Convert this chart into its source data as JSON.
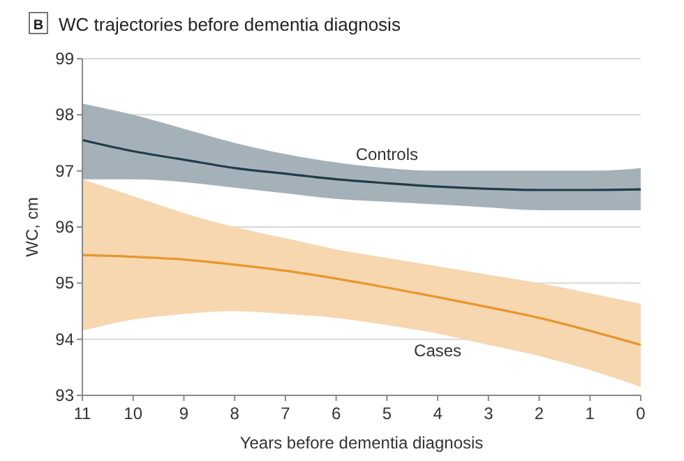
{
  "chart_data": {
    "type": "line",
    "title": "WC trajectories before dementia diagnosis",
    "annotations": [
      "B"
    ],
    "xlabel": "Years before dementia diagnosis",
    "ylabel": "WC, cm",
    "x": [
      11,
      10,
      9,
      8,
      7,
      6,
      5,
      4,
      3,
      2,
      1,
      0
    ],
    "xlim": [
      11,
      0
    ],
    "xticks": [
      11,
      10,
      9,
      8,
      7,
      6,
      5,
      4,
      3,
      2,
      1,
      0
    ],
    "ylim": [
      93,
      99
    ],
    "yticks": [
      93,
      94,
      95,
      96,
      97,
      98,
      99
    ],
    "grid": "y",
    "marker": "none",
    "line_style": "solid",
    "series": [
      {
        "name": "Controls",
        "color": "#1f3b4d",
        "values": [
          97.55,
          97.35,
          97.2,
          97.05,
          96.95,
          96.85,
          96.78,
          96.72,
          96.68,
          96.66,
          96.66,
          96.67
        ],
        "lower": [
          96.85,
          96.85,
          96.8,
          96.7,
          96.6,
          96.5,
          96.45,
          96.4,
          96.35,
          96.3,
          96.3,
          96.3
        ],
        "upper": [
          98.2,
          98.0,
          97.75,
          97.5,
          97.3,
          97.15,
          97.05,
          97.0,
          97.0,
          97.0,
          97.0,
          97.05
        ]
      },
      {
        "name": "Cases",
        "color": "#e8962e",
        "values": [
          95.5,
          95.47,
          95.42,
          95.33,
          95.22,
          95.08,
          94.92,
          94.75,
          94.57,
          94.38,
          94.15,
          93.9
        ],
        "lower": [
          94.15,
          94.35,
          94.45,
          94.5,
          94.45,
          94.38,
          94.25,
          94.1,
          93.9,
          93.7,
          93.45,
          93.15
        ],
        "upper": [
          96.85,
          96.55,
          96.25,
          96.0,
          95.8,
          95.6,
          95.45,
          95.3,
          95.15,
          95.0,
          94.82,
          94.63
        ]
      }
    ]
  }
}
